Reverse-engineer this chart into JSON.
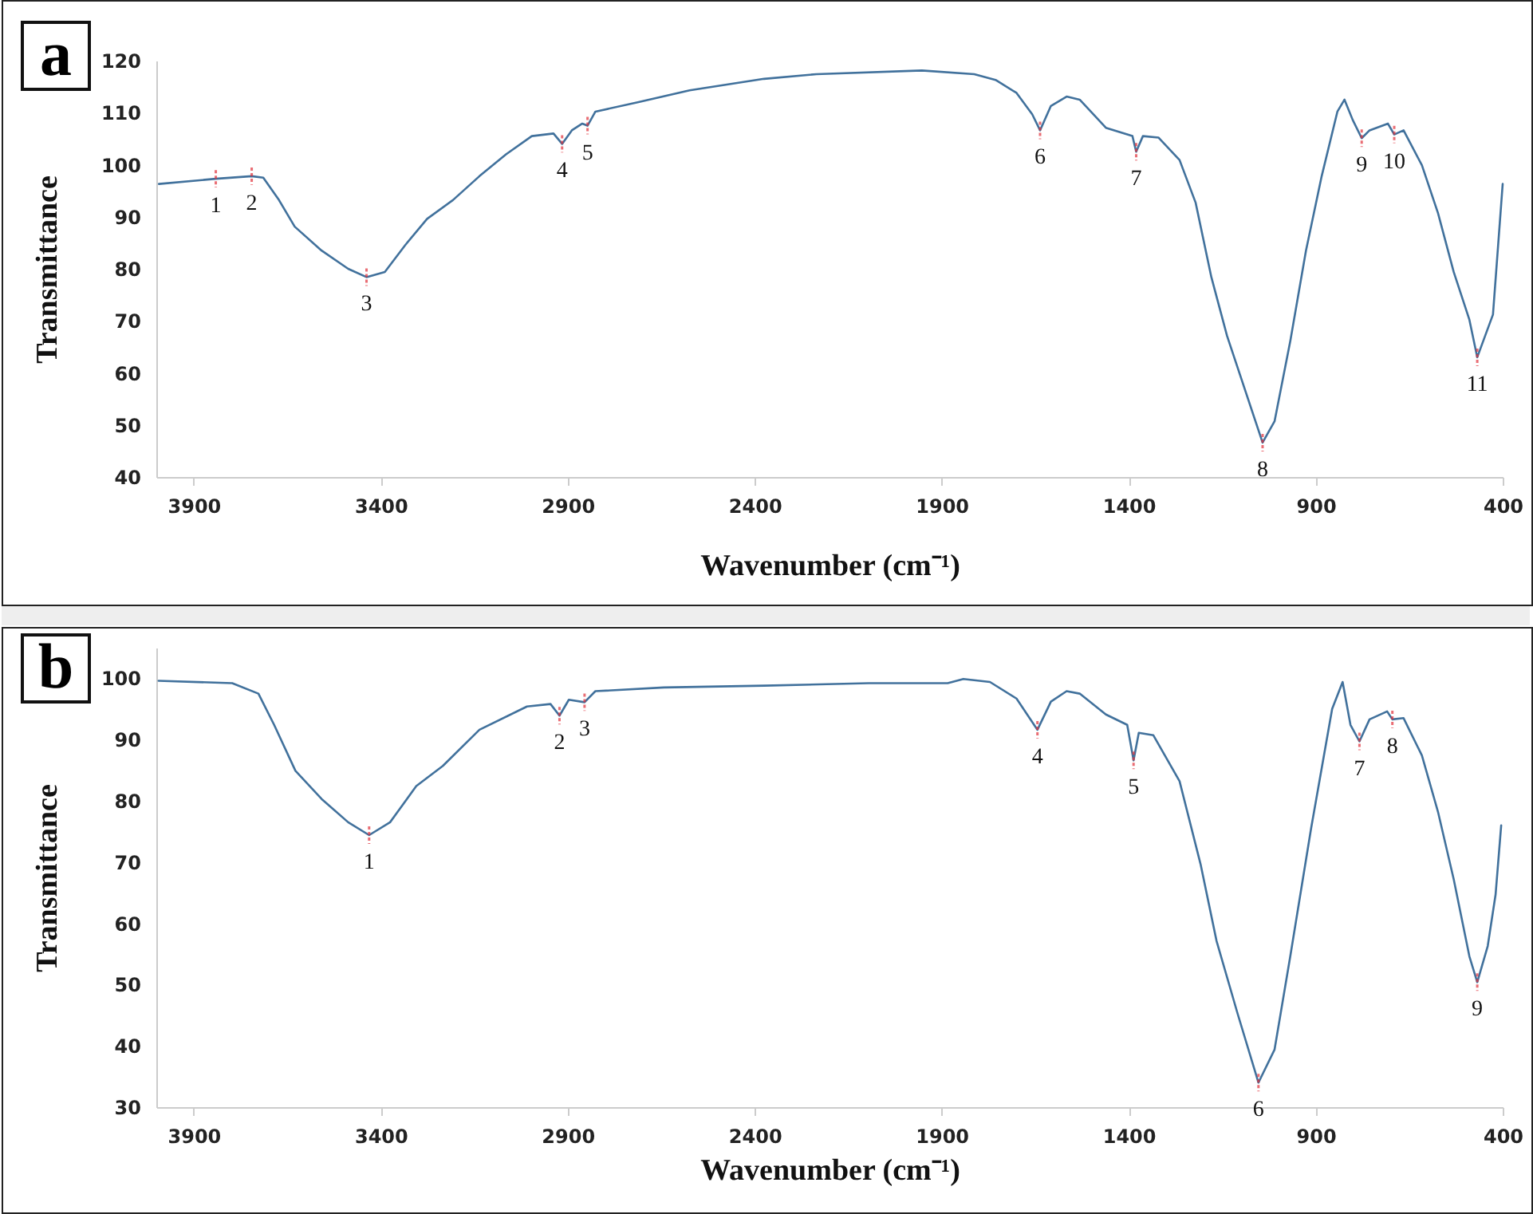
{
  "chart_data": [
    {
      "type": "line",
      "title": "a",
      "xlabel": "Wavenumber (cm⁻¹)",
      "ylabel": "Transmittance",
      "color": "#41719c",
      "x": [
        3993,
        3841,
        3745,
        3714,
        3672,
        3630,
        3558,
        3487,
        3438,
        3389,
        3334,
        3276,
        3207,
        3136,
        3065,
        2996,
        2938,
        2915,
        2889,
        2861,
        2847,
        2826,
        2713,
        2574,
        2375,
        2235,
        1953,
        1813,
        1756,
        1700,
        1658,
        1637,
        1608,
        1566,
        1531,
        1461,
        1390,
        1380,
        1362,
        1320,
        1264,
        1221,
        1179,
        1137,
        1080,
        1042,
        1010,
        968,
        926,
        884,
        842,
        823,
        801,
        777,
        756,
        707,
        690,
        665,
        616,
        573,
        531,
        489,
        468,
        447,
        426,
        400
      ],
      "values": [
        96.3,
        97.3,
        97.8,
        97.5,
        93.2,
        88.1,
        83.5,
        80.0,
        78.4,
        79.4,
        84.6,
        89.6,
        93.2,
        97.8,
        102.0,
        105.5,
        106.0,
        104.0,
        106.6,
        107.9,
        107.5,
        110.2,
        112.0,
        114.3,
        116.5,
        117.4,
        118.1,
        117.4,
        116.3,
        113.8,
        109.7,
        106.6,
        111.3,
        113.1,
        112.5,
        107.1,
        105.5,
        102.5,
        105.5,
        105.2,
        100.9,
        92.7,
        78.4,
        67.1,
        54.8,
        46.6,
        50.7,
        66.1,
        83.5,
        97.8,
        110.2,
        112.5,
        108.6,
        105.1,
        106.6,
        107.9,
        105.8,
        106.6,
        99.9,
        90.7,
        79.4,
        70.2,
        63.0,
        67.1,
        71.2,
        96.3
      ],
      "xlim": [
        4000,
        400
      ],
      "xticks": [
        3900,
        3400,
        2900,
        2400,
        1900,
        1400,
        900,
        400
      ],
      "ylim": [
        40,
        120
      ],
      "yticks": [
        40,
        50,
        60,
        70,
        80,
        90,
        100,
        110,
        120
      ],
      "annotations": [
        {
          "text": "1",
          "x": 3841,
          "y": 97.3
        },
        {
          "text": "2",
          "x": 3745,
          "y": 97.8
        },
        {
          "text": "3",
          "x": 3438,
          "y": 78.4
        },
        {
          "text": "4",
          "x": 2915,
          "y": 104.0
        },
        {
          "text": "5",
          "x": 2847,
          "y": 107.5
        },
        {
          "text": "6",
          "x": 1637,
          "y": 106.6
        },
        {
          "text": "7",
          "x": 1380,
          "y": 102.5
        },
        {
          "text": "8",
          "x": 1042,
          "y": 46.6
        },
        {
          "text": "9",
          "x": 777,
          "y": 105.1
        },
        {
          "text": "10",
          "x": 690,
          "y": 105.8
        },
        {
          "text": "11",
          "x": 468,
          "y": 63.0
        }
      ]
    },
    {
      "type": "line",
      "title": "b",
      "xlabel": "Wavenumber (cm⁻¹)",
      "ylabel": "Transmittance",
      "color": "#41719c",
      "x": [
        3994,
        3797,
        3727,
        3685,
        3628,
        3558,
        3487,
        3431,
        3375,
        3305,
        3234,
        3136,
        3009,
        2946,
        2922,
        2897,
        2855,
        2826,
        2643,
        2375,
        2095,
        1884,
        1842,
        1771,
        1700,
        1644,
        1608,
        1566,
        1531,
        1461,
        1404,
        1387,
        1373,
        1334,
        1264,
        1208,
        1165,
        1109,
        1053,
        1010,
        968,
        912,
        856,
        828,
        807,
        783,
        756,
        709,
        695,
        665,
        616,
        573,
        531,
        489,
        468,
        440,
        419,
        404
      ],
      "values": [
        99.6,
        99.2,
        97.5,
        92.4,
        84.9,
        80.3,
        76.5,
        74.4,
        76.5,
        82.4,
        85.7,
        91.6,
        95.4,
        95.8,
        93.9,
        96.5,
        96.1,
        97.9,
        98.5,
        98.8,
        99.2,
        99.2,
        99.9,
        99.4,
        96.7,
        91.6,
        96.2,
        97.9,
        97.5,
        94.1,
        92.4,
        86.6,
        91.1,
        90.7,
        83.2,
        69.7,
        57.1,
        45.3,
        34.0,
        39.4,
        54.6,
        75.6,
        95.0,
        99.4,
        92.4,
        89.7,
        93.3,
        94.6,
        93.3,
        93.5,
        87.4,
        78.2,
        67.2,
        54.6,
        50.4,
        56.3,
        64.7,
        76.0
      ],
      "xlim": [
        4000,
        400
      ],
      "xticks": [
        3900,
        3400,
        2900,
        2400,
        1900,
        1400,
        900,
        400
      ],
      "ylim": [
        30,
        105
      ],
      "yticks": [
        30,
        40,
        50,
        60,
        70,
        80,
        90,
        100
      ],
      "annotations": [
        {
          "text": "1",
          "x": 3431,
          "y": 74.4
        },
        {
          "text": "2",
          "x": 2922,
          "y": 93.9
        },
        {
          "text": "3",
          "x": 2855,
          "y": 96.1
        },
        {
          "text": "4",
          "x": 1644,
          "y": 91.6
        },
        {
          "text": "5",
          "x": 1387,
          "y": 86.6
        },
        {
          "text": "6",
          "x": 1053,
          "y": 34.0
        },
        {
          "text": "7",
          "x": 783,
          "y": 89.7
        },
        {
          "text": "8",
          "x": 695,
          "y": 93.3
        },
        {
          "text": "9",
          "x": 468,
          "y": 50.4
        }
      ]
    }
  ]
}
